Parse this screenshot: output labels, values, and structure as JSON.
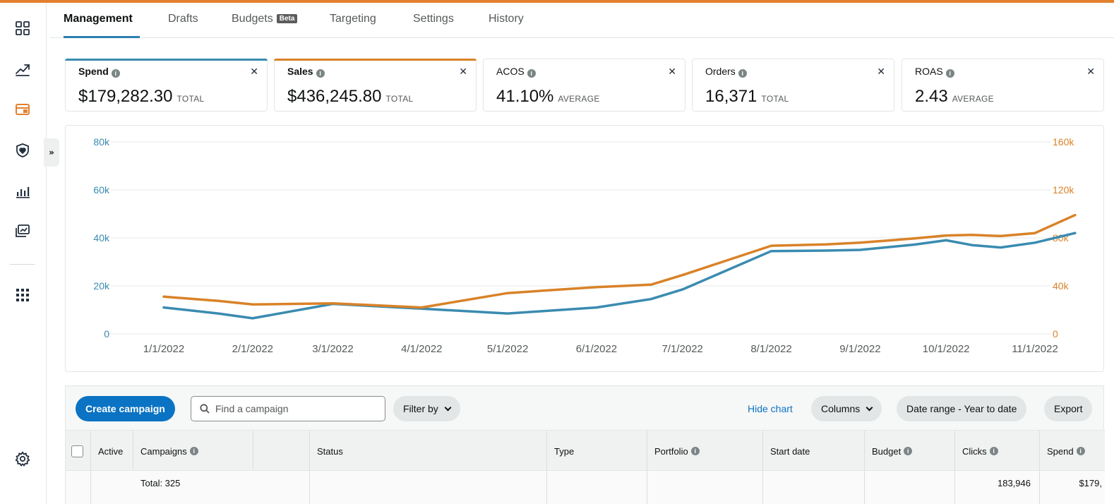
{
  "colors": {
    "accent": "#e3802e",
    "spend": "#3a8bb0",
    "sales": "#d98228",
    "primary": "#0a73c4"
  },
  "sidebar": {
    "icons": [
      "dashboard-icon",
      "trend-up-icon",
      "wallet-icon",
      "shield-heart-icon",
      "bar-chart-icon",
      "media-library-icon",
      "grid-apps-icon",
      "settings-gear-icon"
    ],
    "expand_label": "»"
  },
  "tabs": [
    {
      "label": "Management",
      "active": true
    },
    {
      "label": "Drafts"
    },
    {
      "label": "Budgets",
      "badge": "Beta"
    },
    {
      "label": "Targeting"
    },
    {
      "label": "Settings"
    },
    {
      "label": "History"
    }
  ],
  "metrics": [
    {
      "label": "Spend",
      "value": "$179,282.30",
      "unit": "TOTAL",
      "selected": true,
      "color": "#3a8bb0"
    },
    {
      "label": "Sales",
      "value": "$436,245.80",
      "unit": "TOTAL",
      "selected": true,
      "color": "#d98228"
    },
    {
      "label": "ACOS",
      "value": "41.10%",
      "unit": "AVERAGE",
      "selected": false
    },
    {
      "label": "Orders",
      "value": "16,371",
      "unit": "TOTAL",
      "selected": false
    },
    {
      "label": "ROAS",
      "value": "2.43",
      "unit": "AVERAGE",
      "selected": false
    }
  ],
  "chart_data": {
    "type": "line",
    "x": [
      "1/1/2022",
      "1/20/2022",
      "2/1/2022",
      "3/1/2022",
      "4/1/2022",
      "5/1/2022",
      "6/1/2022",
      "6/20/2022",
      "7/1/2022",
      "8/1/2022",
      "8/20/2022",
      "9/1/2022",
      "9/20/2022",
      "10/1/2022",
      "10/10/2022",
      "10/20/2022",
      "11/1/2022",
      "11/15/2022"
    ],
    "x_ticks": [
      "1/1/2022",
      "2/1/2022",
      "3/1/2022",
      "4/1/2022",
      "5/1/2022",
      "6/1/2022",
      "7/1/2022",
      "8/1/2022",
      "9/1/2022",
      "10/1/2022",
      "11/1/2022"
    ],
    "series": [
      {
        "name": "Spend",
        "axis": "left",
        "color": "#3a8bb0",
        "values": [
          11000,
          8500,
          6500,
          12500,
          10500,
          8500,
          11000,
          14500,
          18500,
          34500,
          34700,
          35000,
          37200,
          39000,
          37000,
          36000,
          38000,
          42000
        ]
      },
      {
        "name": "Sales",
        "axis": "right",
        "color": "#d98228",
        "values": [
          31000,
          27500,
          24500,
          25500,
          22000,
          34000,
          39000,
          41000,
          49000,
          73500,
          74500,
          76000,
          79500,
          82000,
          82500,
          81500,
          84000,
          99000
        ]
      }
    ],
    "y_left": {
      "ticks": [
        "0",
        "20k",
        "40k",
        "60k",
        "80k"
      ],
      "min": 0,
      "max": 80000
    },
    "y_right": {
      "ticks": [
        "0",
        "40k",
        "80k",
        "120k",
        "160k"
      ],
      "min": 0,
      "max": 160000
    },
    "grid": true
  },
  "toolbar": {
    "create_label": "Create campaign",
    "search_placeholder": "Find a campaign",
    "filter_label": "Filter by",
    "hide_chart": "Hide chart",
    "columns_label": "Columns",
    "date_range_label": "Date range - Year to date",
    "export_label": "Export"
  },
  "table": {
    "headers": [
      "Active",
      "Campaigns",
      "Status",
      "Type",
      "Portfolio",
      "Start date",
      "Budget",
      "Clicks",
      "Spend"
    ],
    "info_headers": [
      "Campaigns",
      "Portfolio",
      "Budget",
      "Clicks",
      "Spend"
    ],
    "total_row": {
      "label": "Total: 325",
      "clicks": "183,946",
      "spend": "$179,"
    }
  }
}
